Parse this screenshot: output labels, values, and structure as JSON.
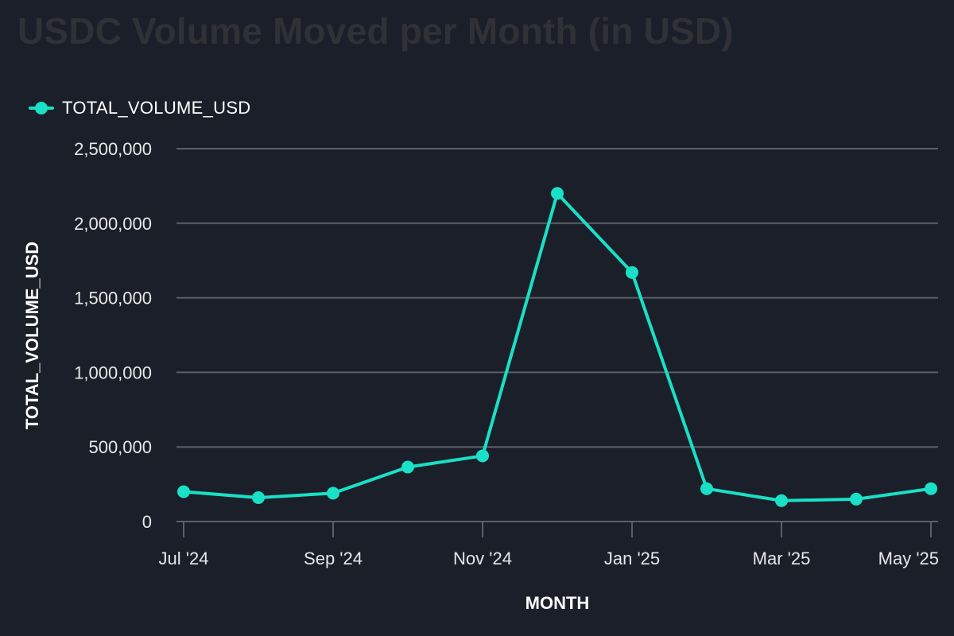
{
  "colors": {
    "background": "#1b1f2a",
    "series": "#19e0c6",
    "grid": "#5c5f66",
    "title": "#2f3136",
    "text": "#e8e8e8"
  },
  "chart_data": {
    "type": "line",
    "title": "USDC Volume Moved per Month (in USD)",
    "xlabel": "MONTH",
    "ylabel": "TOTAL_VOLUME_USD",
    "ylim": [
      0,
      2500000
    ],
    "yticks": [
      0,
      500000,
      1000000,
      1500000,
      2000000,
      2500000
    ],
    "ytick_labels": [
      "0",
      "500,000",
      "1,000,000",
      "1,500,000",
      "2,000,000",
      "2,500,000"
    ],
    "x": [
      "2024-07",
      "2024-08",
      "2024-09",
      "2024-10",
      "2024-11",
      "2024-12",
      "2025-01",
      "2025-02",
      "2025-03",
      "2025-04",
      "2025-05"
    ],
    "xtick_labels": [
      "Jul '24",
      "",
      "Sep '24",
      "",
      "Nov '24",
      "",
      "Jan '25",
      "",
      "Mar '25",
      "",
      "May '25"
    ],
    "grid": true,
    "legend": "top-left",
    "series": [
      {
        "name": "TOTAL_VOLUME_USD",
        "values": [
          200000,
          160000,
          190000,
          365000,
          440000,
          2200000,
          1670000,
          220000,
          140000,
          150000,
          220000
        ]
      }
    ]
  }
}
